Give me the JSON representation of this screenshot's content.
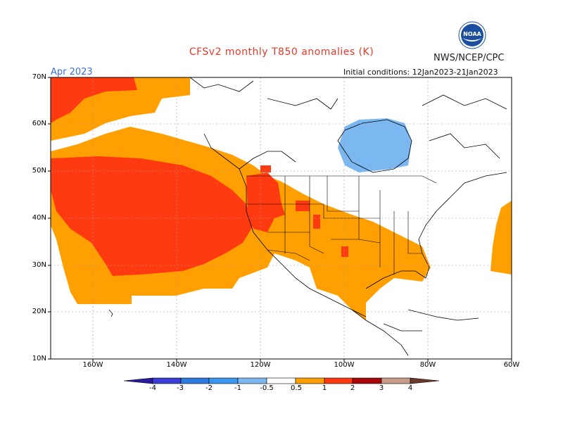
{
  "title": "CFSv2 monthly T850 anomalies (K)",
  "month": "Apr 2023",
  "org": "NWS/NCEP/CPC",
  "init": "Initial conditions: 12Jan2023-21Jan2023",
  "logo_text": "NOAA",
  "lat_labels": [
    "70N",
    "60N",
    "50N",
    "40N",
    "30N",
    "20N",
    "10N"
  ],
  "lon_labels": [
    "160W",
    "140W",
    "120W",
    "100W",
    "80W",
    "60W"
  ],
  "colorbar": {
    "labels": [
      "-4",
      "-3",
      "-2",
      "-1",
      "-0.5",
      "0.5",
      "1",
      "2",
      "3",
      "4"
    ],
    "colors": [
      "#2a1a9e",
      "#3c3cd6",
      "#2f7ce0",
      "#3a96ef",
      "#7bb8f2",
      "#ffffff",
      "#ffa000",
      "#ff3a10",
      "#a80808",
      "#c89a8a",
      "#6b3a2a"
    ]
  },
  "anomaly_colors": {
    "positive_0_5_1": "#ffa000",
    "positive_1_2": "#ff3a10",
    "negative_0_5_1": "#7bb8f2"
  }
}
